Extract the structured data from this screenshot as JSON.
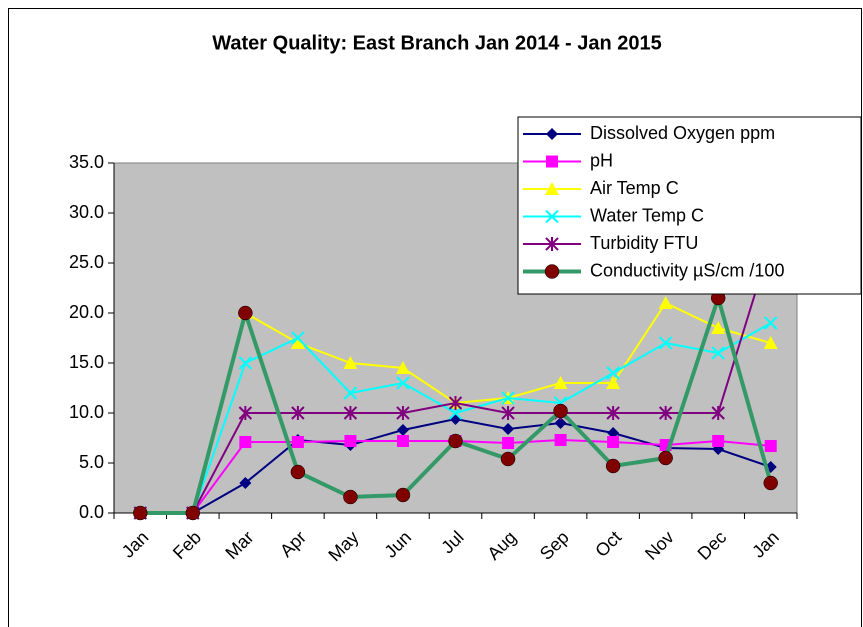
{
  "chart_data": {
    "type": "line",
    "title": "Water Quality: East Branch Jan 2014 - Jan 2015",
    "categories": [
      "Jan",
      "Feb",
      "Mar",
      "Apr",
      "May",
      "Jun",
      "Jul",
      "Aug",
      "Sep",
      "Oct",
      "Nov",
      "Dec",
      "Jan"
    ],
    "ylim": [
      0,
      35
    ],
    "yticks": [
      {
        "value": 0,
        "label": "0.0"
      },
      {
        "value": 5,
        "label": "5.0"
      },
      {
        "value": 10,
        "label": "10.0"
      },
      {
        "value": 15,
        "label": "15.0"
      },
      {
        "value": 20,
        "label": "20.0"
      },
      {
        "value": 25,
        "label": "25.0"
      },
      {
        "value": 30,
        "label": "30.0"
      },
      {
        "value": 35,
        "label": "35.0"
      }
    ],
    "grid": false,
    "legend": "upper right",
    "series": [
      {
        "name": "Dissolved Oxygen ppm",
        "color": "#000080",
        "marker": "diamond",
        "values": [
          0,
          0,
          3,
          7.3,
          6.8,
          8.3,
          9.4,
          8.4,
          9,
          8,
          6.5,
          6.4,
          4.6
        ]
      },
      {
        "name": "pH",
        "color": "#ff00ff",
        "marker": "square",
        "values": [
          0,
          0,
          7.1,
          7.1,
          7.2,
          7.2,
          7.2,
          7,
          7.3,
          7.1,
          6.8,
          7.2,
          6.7
        ]
      },
      {
        "name": "Air Temp C",
        "color": "#ffff00",
        "marker": "triangle",
        "values": [
          0,
          0,
          20,
          17,
          15,
          14.5,
          11,
          11.5,
          13,
          13,
          21,
          18.5,
          17
        ]
      },
      {
        "name": "Water Temp C",
        "color": "#00ffff",
        "marker": "x",
        "values": [
          0,
          0,
          15,
          17.5,
          12,
          13,
          10,
          11.5,
          11,
          14,
          17,
          16,
          19
        ]
      },
      {
        "name": "Turbidity FTU",
        "color": "#800080",
        "marker": "star",
        "values": [
          0,
          0,
          10,
          10,
          10,
          10,
          11,
          10,
          10,
          10,
          10,
          10,
          27
        ]
      },
      {
        "name": "Conductivity µS/cm /100",
        "color": "#339966",
        "marker": "circle",
        "marker_color": "#800000",
        "width": 4,
        "values": [
          0,
          0,
          20,
          4.1,
          1.6,
          1.8,
          7.2,
          5.4,
          10.2,
          4.7,
          5.5,
          21.5,
          3
        ]
      }
    ]
  }
}
